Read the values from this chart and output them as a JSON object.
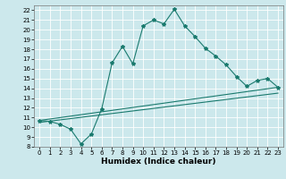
{
  "title": "",
  "xlabel": "Humidex (Indice chaleur)",
  "background_color": "#cce8ec",
  "grid_color": "#ffffff",
  "line_color": "#1a7a6e",
  "xlim": [
    -0.5,
    23.5
  ],
  "ylim": [
    8,
    22.5
  ],
  "xticks": [
    0,
    1,
    2,
    3,
    4,
    5,
    6,
    7,
    8,
    9,
    10,
    11,
    12,
    13,
    14,
    15,
    16,
    17,
    18,
    19,
    20,
    21,
    22,
    23
  ],
  "yticks": [
    8,
    9,
    10,
    11,
    12,
    13,
    14,
    15,
    16,
    17,
    18,
    19,
    20,
    21,
    22
  ],
  "series1_x": [
    0,
    1,
    2,
    3,
    4,
    5,
    6,
    7,
    8,
    9,
    10,
    11,
    12,
    13,
    14,
    15,
    16,
    17,
    18,
    19,
    20,
    21,
    22,
    23
  ],
  "series1_y": [
    10.7,
    10.6,
    10.3,
    9.8,
    8.3,
    9.3,
    11.9,
    16.6,
    18.3,
    16.5,
    20.4,
    21.0,
    20.6,
    22.1,
    20.4,
    19.3,
    18.1,
    17.3,
    16.4,
    15.2,
    14.2,
    14.8,
    15.0,
    14.1
  ],
  "series2_x": [
    0,
    23
  ],
  "series2_y": [
    10.7,
    14.1
  ],
  "series3_x": [
    0,
    23
  ],
  "series3_y": [
    10.5,
    13.5
  ],
  "figsize": [
    3.2,
    2.0
  ],
  "dpi": 100,
  "tick_fontsize": 5.0,
  "xlabel_fontsize": 6.5
}
